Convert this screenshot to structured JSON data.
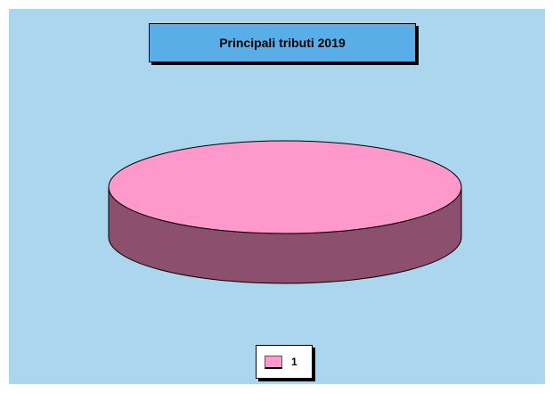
{
  "chart_data": {
    "type": "pie",
    "title": "Principali tributi 2019",
    "categories": [
      "1"
    ],
    "values": [
      1
    ],
    "legend": [
      "1"
    ],
    "legend_placement": "bottom",
    "three_d": true
  },
  "colors": {
    "background": "#acd6ee",
    "title_box": "#5aaee8",
    "slice_top": "#ff99cc",
    "slice_side": "#8c4f6e"
  }
}
